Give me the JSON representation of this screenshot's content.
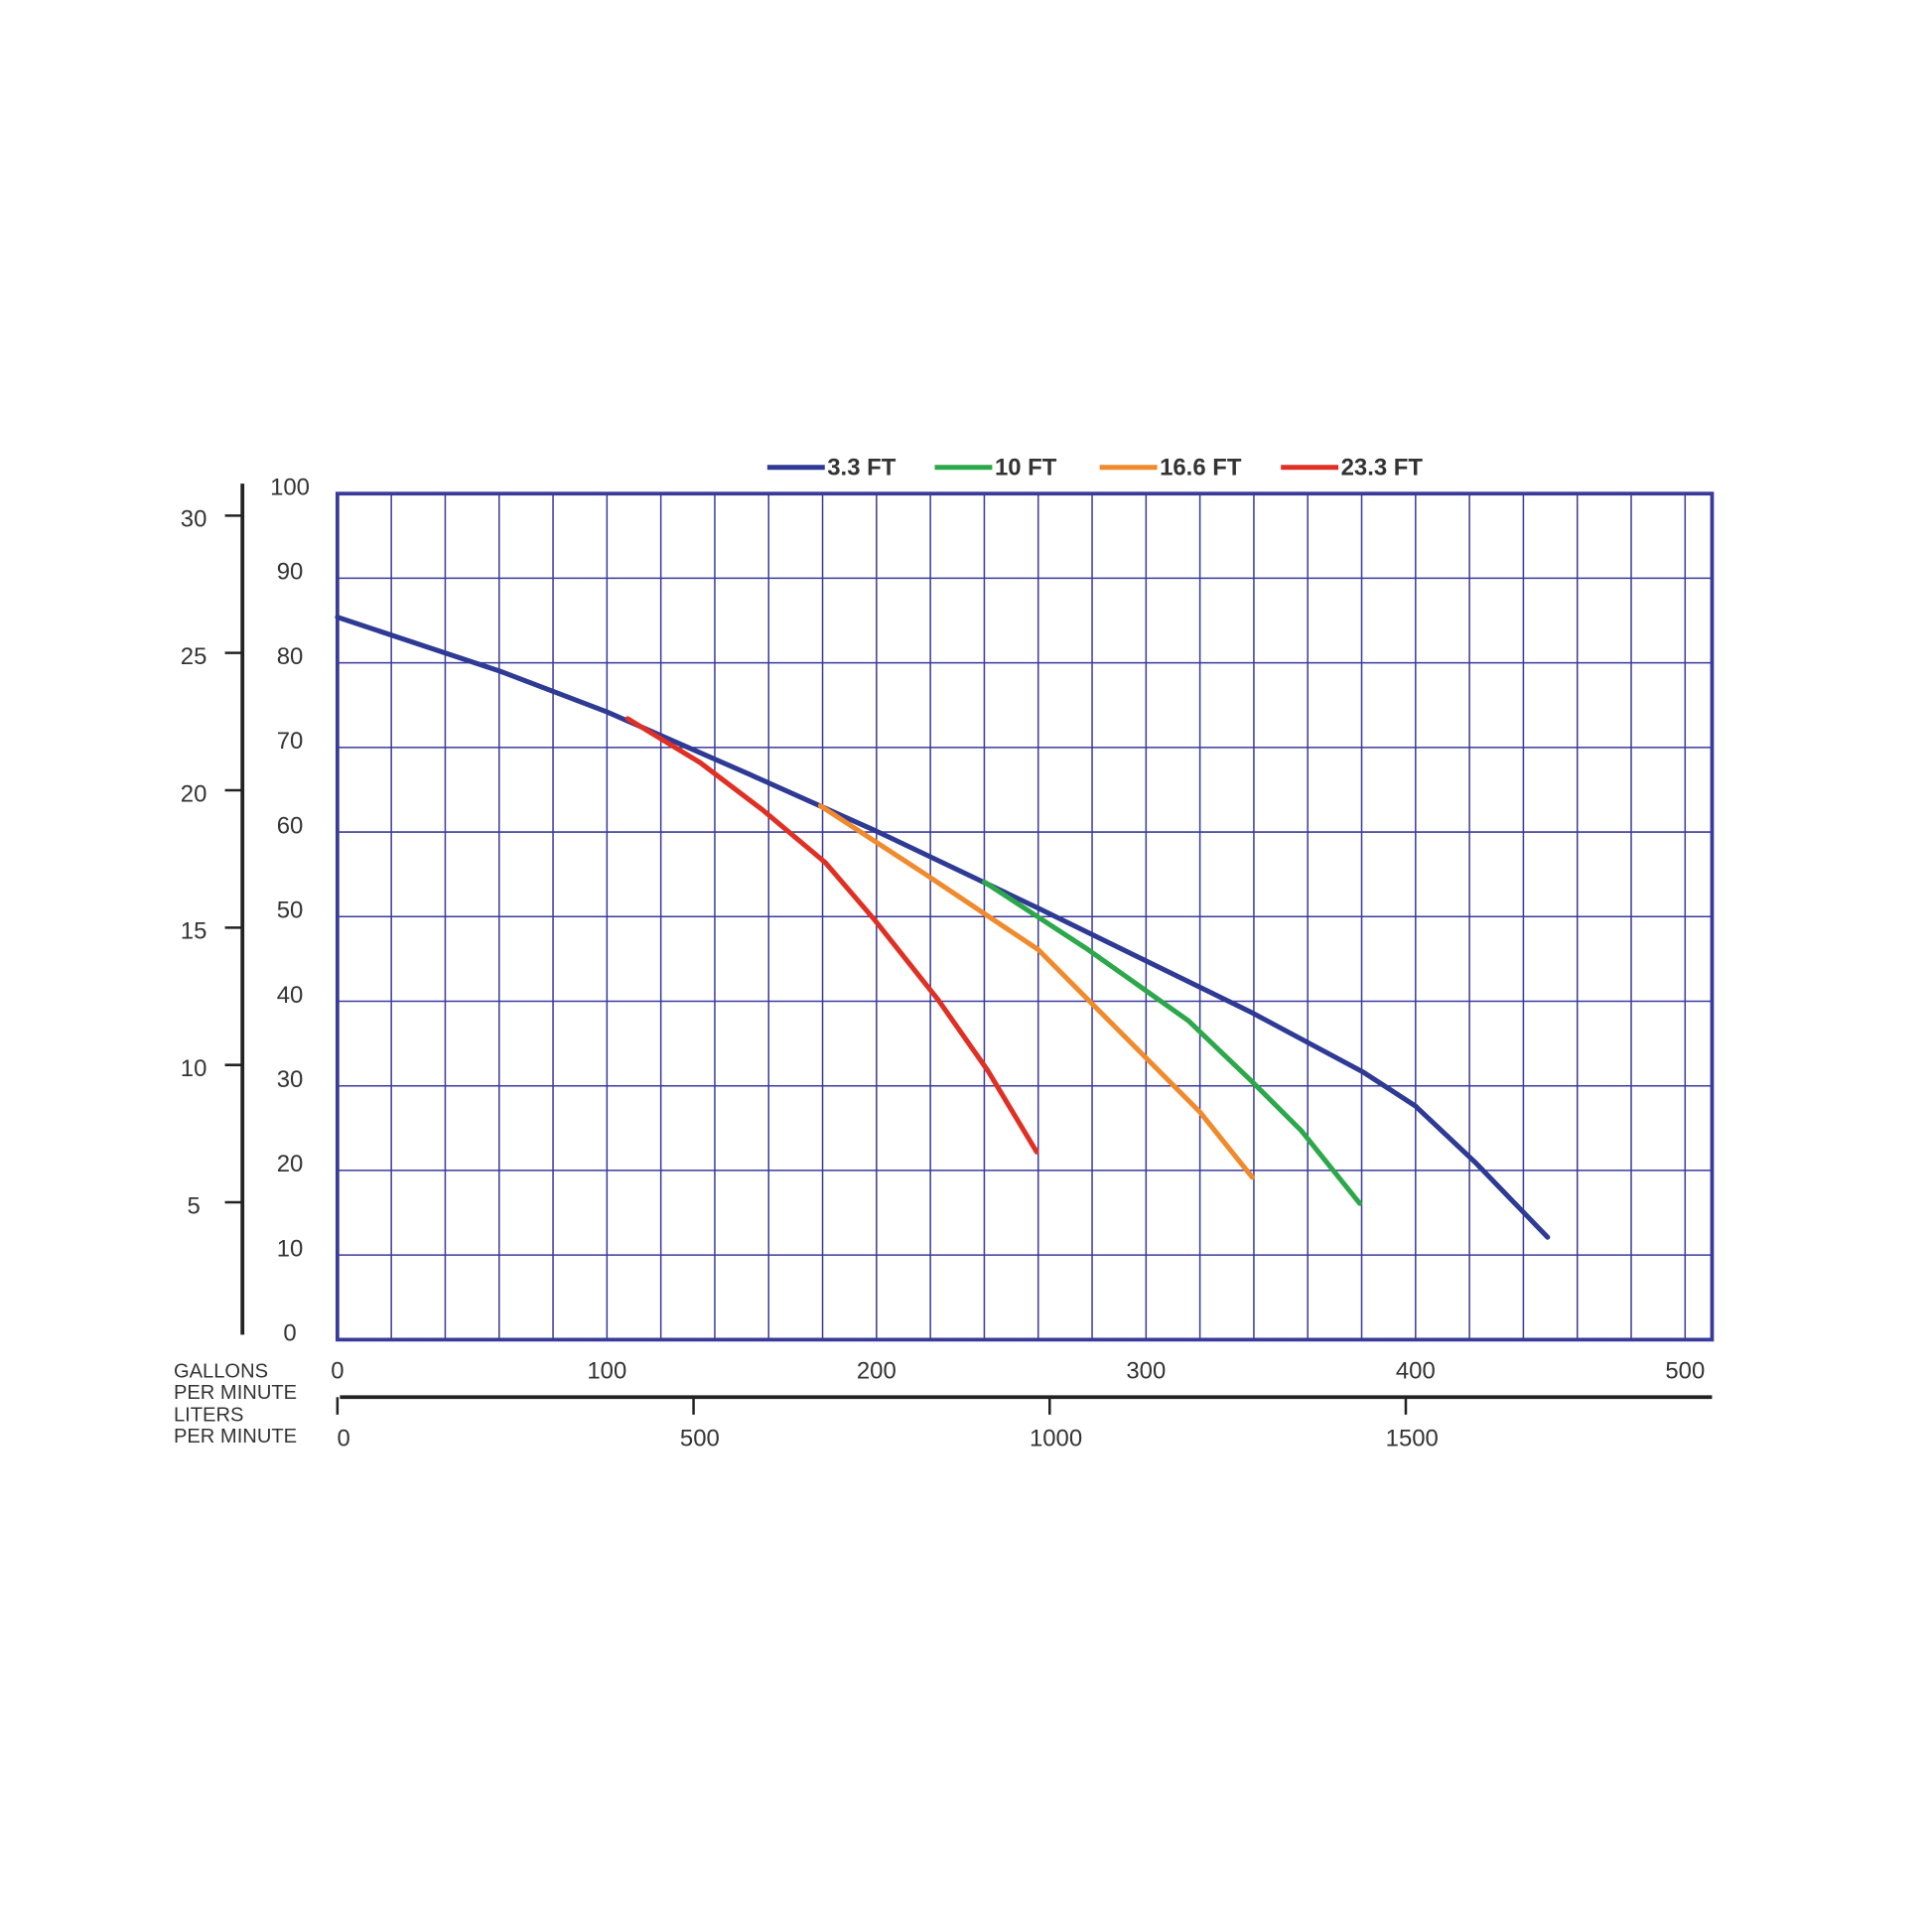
{
  "chart_data": {
    "type": "line",
    "x_label": [
      "GALLONS",
      "PER MINUTE"
    ],
    "x2_label": [
      "LITERS",
      "PER MINUTE"
    ],
    "xlim": [
      0,
      510
    ],
    "xticks": [
      0,
      100,
      200,
      300,
      400,
      500
    ],
    "xgrid": [
      0,
      20,
      40,
      60,
      80,
      100,
      120,
      140,
      160,
      180,
      200,
      220,
      240,
      260,
      280,
      300,
      320,
      340,
      360,
      380,
      400,
      420,
      440,
      460,
      480,
      500
    ],
    "x2lim": [
      0,
      1930
    ],
    "x2ticks": [
      0,
      500,
      1000,
      1500
    ],
    "ylim": [
      0,
      100
    ],
    "yticks": [
      0,
      10,
      20,
      30,
      40,
      50,
      60,
      70,
      80,
      90,
      100
    ],
    "y2lim": [
      0,
      30.8
    ],
    "y2ticks": [
      5,
      10,
      15,
      20,
      25,
      30
    ],
    "grid": true,
    "grid_color": "#3a3a9a",
    "series": [
      {
        "name": "3.3 FT",
        "color": "#2e3a94",
        "x": [
          0,
          60.4,
          100,
          153,
          200,
          260,
          339,
          380.7,
          400,
          422,
          449
        ],
        "values": [
          85.4,
          79,
          74.2,
          66.8,
          60.1,
          51,
          38.7,
          31.6,
          27.6,
          21,
          12.1
        ]
      },
      {
        "name": "10 FT",
        "color": "#2ca84a",
        "x": [
          240,
          278.5,
          315.7,
          339,
          357.6,
          379.3
        ],
        "values": [
          54.1,
          46.1,
          37.7,
          30.6,
          24.7,
          16.1
        ]
      },
      {
        "name": "16.6 FT",
        "color": "#f08a2c",
        "x": [
          179.2,
          218.2,
          260,
          292.5,
          320,
          339.4
        ],
        "values": [
          63.1,
          55,
          46.1,
          35.7,
          26.9,
          19.2
        ]
      },
      {
        "name": "23.3 FT",
        "color": "#e03024",
        "x": [
          107.7,
          134.6,
          157.8,
          181,
          199.6,
          222.8,
          241.3,
          259.4
        ],
        "values": [
          73.4,
          68.2,
          62.6,
          56.4,
          49.5,
          40.2,
          31.8,
          22.2
        ]
      }
    ]
  }
}
